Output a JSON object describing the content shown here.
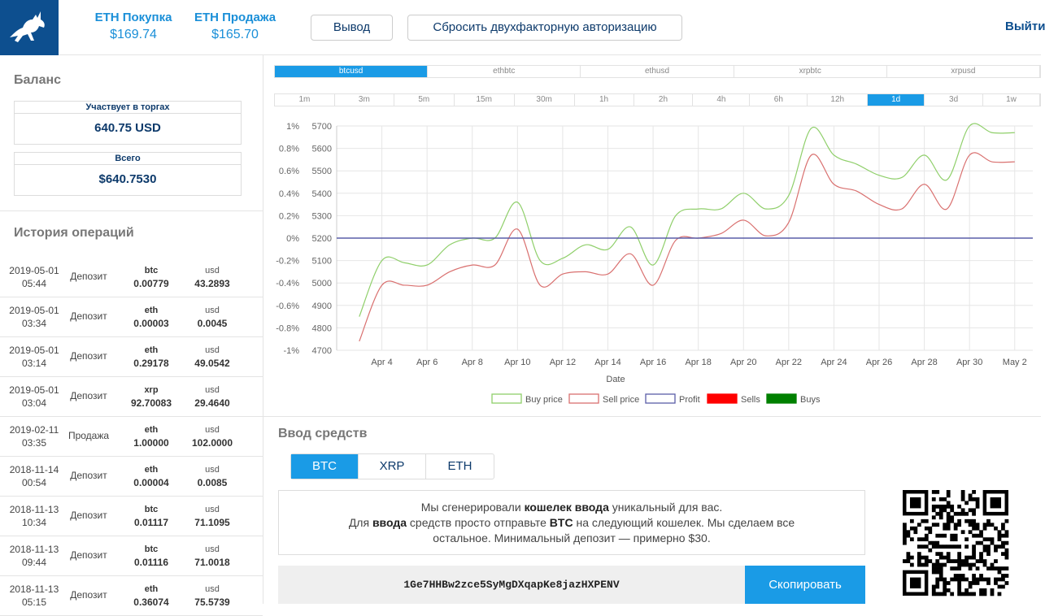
{
  "header": {
    "buy_label": "ETH Покупка",
    "buy_value": "$169.74",
    "sell_label": "ETH Продажа",
    "sell_value": "$165.70",
    "withdraw_label": "Вывод",
    "reset_2fa_label": "Сбросить двухфакторную авторизацию",
    "logout_label": "Выйти"
  },
  "balance": {
    "title": "Баланс",
    "trading_label": "Участвует в торгах",
    "trading_value": "640.75 USD",
    "total_label": "Всего",
    "total_value": "$640.7530"
  },
  "history": {
    "title": "История операций",
    "rows": [
      {
        "date": "2019-05-01",
        "time": "05:44",
        "type": "Депозит",
        "coin": "btc",
        "coin_amount": "0.00779",
        "fiat": "usd",
        "fiat_amount": "43.2893"
      },
      {
        "date": "2019-05-01",
        "time": "03:34",
        "type": "Депозит",
        "coin": "eth",
        "coin_amount": "0.00003",
        "fiat": "usd",
        "fiat_amount": "0.0045"
      },
      {
        "date": "2019-05-01",
        "time": "03:14",
        "type": "Депозит",
        "coin": "eth",
        "coin_amount": "0.29178",
        "fiat": "usd",
        "fiat_amount": "49.0542"
      },
      {
        "date": "2019-05-01",
        "time": "03:04",
        "type": "Депозит",
        "coin": "xrp",
        "coin_amount": "92.70083",
        "fiat": "usd",
        "fiat_amount": "29.4640"
      },
      {
        "date": "2019-02-11",
        "time": "03:35",
        "type": "Продажа",
        "coin": "eth",
        "coin_amount": "1.00000",
        "fiat": "usd",
        "fiat_amount": "102.0000"
      },
      {
        "date": "2018-11-14",
        "time": "00:54",
        "type": "Депозит",
        "coin": "eth",
        "coin_amount": "0.00004",
        "fiat": "usd",
        "fiat_amount": "0.0085"
      },
      {
        "date": "2018-11-13",
        "time": "10:34",
        "type": "Депозит",
        "coin": "btc",
        "coin_amount": "0.01117",
        "fiat": "usd",
        "fiat_amount": "71.1095"
      },
      {
        "date": "2018-11-13",
        "time": "09:44",
        "type": "Депозит",
        "coin": "btc",
        "coin_amount": "0.01116",
        "fiat": "usd",
        "fiat_amount": "71.0018"
      },
      {
        "date": "2018-11-13",
        "time": "05:15",
        "type": "Депозит",
        "coin": "eth",
        "coin_amount": "0.36074",
        "fiat": "usd",
        "fiat_amount": "75.5739"
      }
    ]
  },
  "pair_tabs": {
    "items": [
      "btcusd",
      "ethbtc",
      "ethusd",
      "xrpbtc",
      "xrpusd"
    ],
    "active": "btcusd"
  },
  "timeframe_tabs": {
    "items": [
      "1m",
      "3m",
      "5m",
      "15m",
      "30m",
      "1h",
      "2h",
      "4h",
      "6h",
      "12h",
      "1d",
      "3d",
      "1w"
    ],
    "active": "1d"
  },
  "chart_data": {
    "type": "line",
    "title": "",
    "xlabel": "Date",
    "ylabel": "",
    "x_ticks": [
      "Apr 4",
      "Apr 6",
      "Apr 8",
      "Apr 10",
      "Apr 12",
      "Apr 14",
      "Apr 16",
      "Apr 18",
      "Apr 20",
      "Apr 22",
      "Apr 24",
      "Apr 26",
      "Apr 28",
      "Apr 30",
      "May 2"
    ],
    "x_days": [
      3,
      4,
      5,
      6,
      7,
      8,
      9,
      10,
      11,
      12,
      13,
      14,
      15,
      16,
      17,
      18,
      19,
      20,
      21,
      22,
      23,
      24,
      25,
      26,
      27,
      28,
      29,
      30,
      31,
      32
    ],
    "ylim_price": [
      4700,
      5700
    ],
    "y_ticks_price": [
      4700,
      4800,
      4900,
      5000,
      5100,
      5200,
      5300,
      5400,
      5500,
      5600,
      5700
    ],
    "ylim_percent": [
      -1,
      1
    ],
    "y_ticks_percent": [
      "-1%",
      "-0.8%",
      "-0.6%",
      "-0.4%",
      "-0.2%",
      "0%",
      "0.2%",
      "0.4%",
      "0.6%",
      "0.8%",
      "1%"
    ],
    "grid": true,
    "legend_position": "bottom",
    "series": [
      {
        "name": "Buy price",
        "color": "#8fcf6a",
        "values": [
          4850,
          5100,
          5090,
          5080,
          5170,
          5200,
          5200,
          5360,
          5100,
          5110,
          5170,
          5150,
          5250,
          5080,
          5300,
          5330,
          5330,
          5400,
          5330,
          5390,
          5690,
          5570,
          5530,
          5480,
          5470,
          5570,
          5460,
          5700,
          5670,
          5670
        ]
      },
      {
        "name": "Sell price",
        "color": "#d9706f",
        "values": [
          4740,
          4990,
          4990,
          4990,
          5050,
          5080,
          5080,
          5240,
          4990,
          5040,
          5050,
          5040,
          5130,
          4990,
          5190,
          5200,
          5220,
          5280,
          5210,
          5270,
          5570,
          5440,
          5410,
          5350,
          5330,
          5440,
          5330,
          5570,
          5540,
          5540
        ]
      },
      {
        "name": "Profit",
        "color": "#5a5ea8",
        "values": [
          5200,
          5200,
          5200,
          5200,
          5200,
          5200,
          5200,
          5200,
          5200,
          5200,
          5200,
          5200,
          5200,
          5200,
          5200,
          5200,
          5200,
          5200,
          5200,
          5200,
          5200,
          5200,
          5200,
          5200,
          5200,
          5200,
          5200,
          5200,
          5200,
          5200
        ]
      },
      {
        "name": "Sells",
        "color": "#ff0000",
        "values": []
      },
      {
        "name": "Buys",
        "color": "#008000",
        "values": []
      }
    ]
  },
  "deposit": {
    "title": "Ввод средств",
    "currencies": [
      "BTC",
      "XRP",
      "ETH"
    ],
    "active_currency": "BTC",
    "info_line1_a": "Мы сгенерировали ",
    "info_line1_b": "кошелек ввода",
    "info_line1_c": " уникальный для вас.",
    "info_line2_a": "Для ",
    "info_line2_b": "ввода",
    "info_line2_c": " средств просто отправьте ",
    "info_line2_d": "BTC",
    "info_line2_e": " на следующий кошелек. Мы сделаем все",
    "info_line3": "остальное. Минимальный депозит — примерно $30.",
    "address": "1Ge7HHBw2zce5SyMgDXqapKe8jazHXPENV",
    "copy_label": "Скопировать"
  },
  "colors": {
    "accent": "#1a9be6",
    "brand": "#0d4f8f",
    "price_text": "#1a8fd8"
  }
}
